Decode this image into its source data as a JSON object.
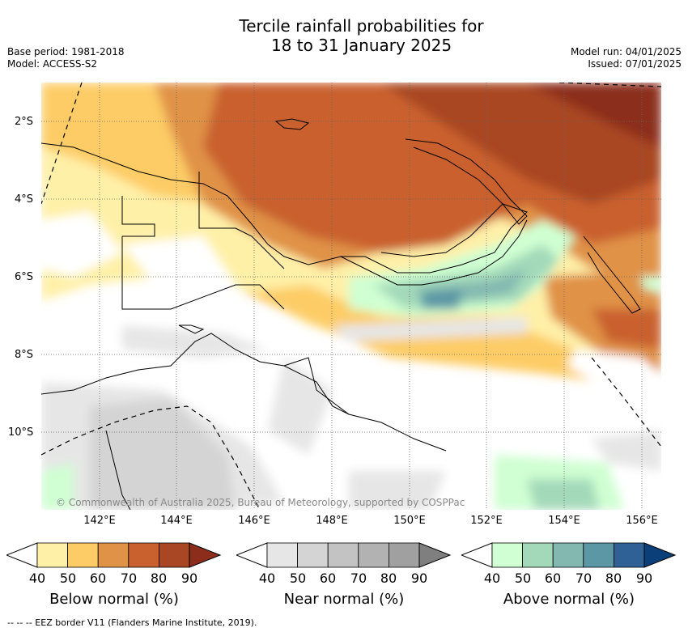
{
  "title_line1": "Tercile rainfall probabilities for",
  "title_line2": "18 to 31 January 2025",
  "base_period": "Base period: 1981-2018",
  "model": "Model: ACCESS-S2",
  "model_run": "Model run: 04/01/2025",
  "issued": "Issued: 07/01/2025",
  "copyright": "© Commonwealth of Australia 2025, Bureau of Meteorology, supported by COSPPac",
  "lat_labels": [
    "2°S",
    "4°S",
    "6°S",
    "8°S",
    "10°S"
  ],
  "lon_labels": [
    "142°E",
    "144°E",
    "146°E",
    "148°E",
    "150°E",
    "152°E",
    "154°E",
    "156°E"
  ],
  "colorbars": [
    {
      "label": "Below normal (%)",
      "ticks": [
        "40",
        "50",
        "60",
        "70",
        "80",
        "90"
      ],
      "colors": [
        "#fff0a8",
        "#fdcc66",
        "#e09247",
        "#c9612f",
        "#a94724",
        "#8c2d1b"
      ]
    },
    {
      "label": "Near normal (%)",
      "ticks": [
        "40",
        "50",
        "60",
        "70",
        "80",
        "90"
      ],
      "colors": [
        "#e6e6e6",
        "#d4d4d4",
        "#c3c3c3",
        "#b2b2b2",
        "#a0a0a0",
        "#7f7f7f"
      ]
    },
    {
      "label": "Above normal (%)",
      "ticks": [
        "40",
        "50",
        "60",
        "70",
        "80",
        "90"
      ],
      "colors": [
        "#cfffd2",
        "#a3d9b9",
        "#82b8b0",
        "#5b97a4",
        "#2f6196",
        "#0b3f7a"
      ]
    }
  ],
  "footer": "--  --  -- EEZ border V11 (Flanders Marine Institute, 2019).",
  "colors": {
    "background": "#ffffff",
    "coastline": "#000000",
    "grid": "#666666"
  }
}
